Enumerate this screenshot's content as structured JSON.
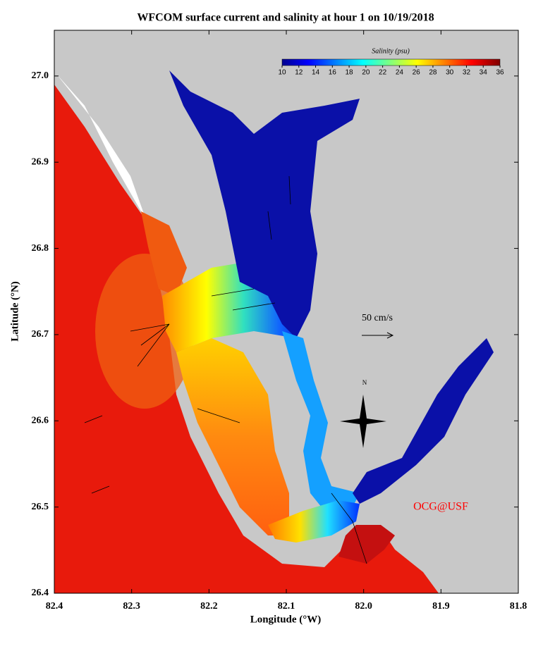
{
  "chart_data": {
    "type": "map",
    "title": "WFCOM surface current and salinity at hour 1 on 10/19/2018",
    "xlabel": "Longitude (°W)",
    "ylabel": "Latitude (°N)",
    "xlim": [
      82.4,
      81.8
    ],
    "xticks": [
      82.4,
      82.3,
      82.2,
      82.1,
      {
        "value": 82,
        "label": "82.0"
      },
      81.9,
      81.8
    ],
    "ylim": [
      26.4,
      27.053
    ],
    "yticks": [
      26.4,
      26.5,
      26.6,
      26.7,
      26.8,
      26.9,
      {
        "value": 27,
        "label": "27.0"
      }
    ],
    "colorbar": {
      "label": "Salinity (psu)",
      "lim": [
        10,
        36
      ],
      "ticks": [
        10,
        12,
        14,
        16,
        18,
        20,
        22,
        24,
        26,
        28,
        30,
        32,
        34,
        36
      ]
    },
    "scale_label": "50 cm/s",
    "north_label": "N",
    "credit": "OCG@USF"
  }
}
